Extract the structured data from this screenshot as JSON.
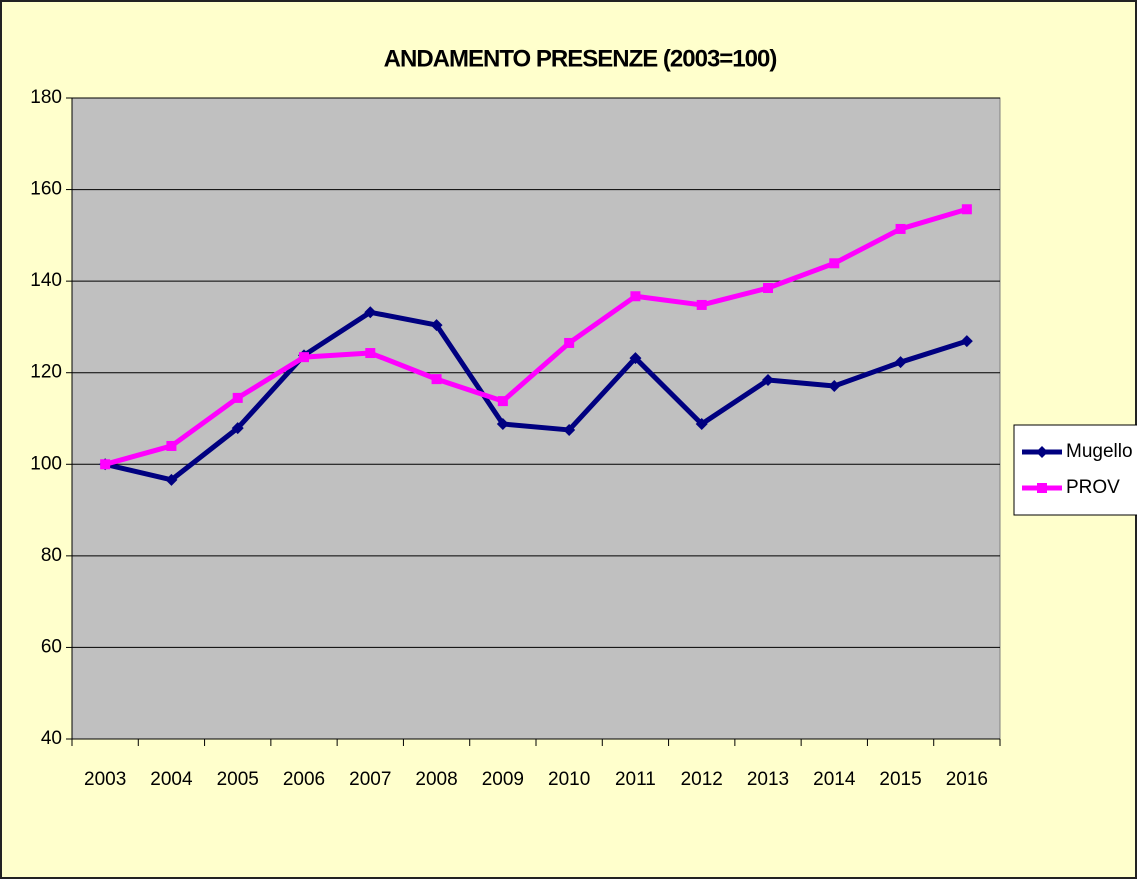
{
  "chart_data": {
    "type": "line",
    "title": "ANDAMENTO PRESENZE (2003=100)",
    "categories": [
      "2003",
      "2004",
      "2005",
      "2006",
      "2007",
      "2008",
      "2009",
      "2010",
      "2011",
      "2012",
      "2013",
      "2014",
      "2015",
      "2016"
    ],
    "series": [
      {
        "name": "Mugello",
        "color": "#000080",
        "marker": "diamond",
        "values": [
          100,
          96.6,
          107.9,
          123.8,
          133.2,
          130.4,
          108.8,
          107.5,
          123.2,
          108.8,
          118.4,
          117.1,
          122.3,
          126.9
        ]
      },
      {
        "name": "PROV",
        "color": "#ff00ff",
        "marker": "square",
        "values": [
          100,
          104,
          114.5,
          123.4,
          124.3,
          118.6,
          113.8,
          126.5,
          136.7,
          134.8,
          138.5,
          143.9,
          151.4,
          155.7
        ]
      }
    ],
    "ylim": [
      40,
      180
    ],
    "yticks": [
      40,
      60,
      80,
      100,
      120,
      140,
      160,
      180
    ],
    "grid": true,
    "legend": "right"
  }
}
